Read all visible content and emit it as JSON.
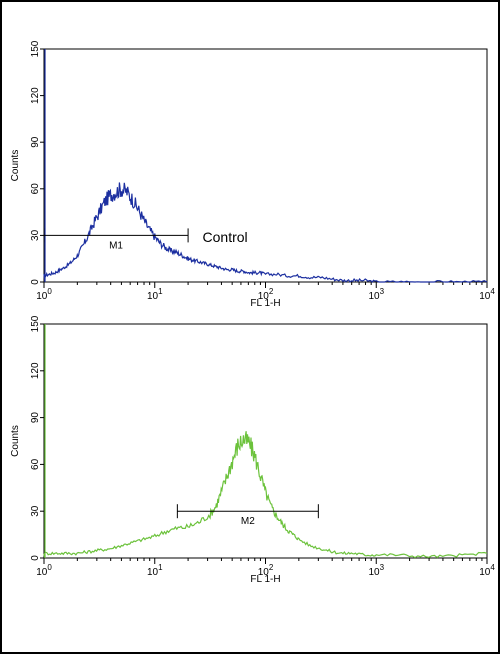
{
  "chart_data": [
    {
      "type": "line",
      "panel": "top",
      "title": "",
      "xlabel": "FL 1-H",
      "ylabel": "Counts",
      "x_scale": "log",
      "xlim": [
        1,
        10000
      ],
      "ylim": [
        0,
        150
      ],
      "x_ticks": [
        {
          "value": 1,
          "base": "10",
          "exp": "0"
        },
        {
          "value": 10,
          "base": "10",
          "exp": "1"
        },
        {
          "value": 100,
          "base": "10",
          "exp": "2"
        },
        {
          "value": 1000,
          "base": "10",
          "exp": "3"
        },
        {
          "value": 10000,
          "base": "10",
          "exp": "4"
        }
      ],
      "y_ticks": [
        "0",
        "30",
        "60",
        "90",
        "120",
        "150"
      ],
      "series": [
        {
          "color": "#1c2fa0",
          "x": [
            1.0,
            1.12,
            1.26,
            1.41,
            1.58,
            1.78,
            2.0,
            2.24,
            2.51,
            2.82,
            3.16,
            3.55,
            3.98,
            4.47,
            5.01,
            5.62,
            6.31,
            7.08,
            7.94,
            8.91,
            10.0,
            11.2,
            12.6,
            14.1,
            15.8,
            17.8,
            20.0,
            22.4,
            25.1,
            28.2,
            31.6,
            35.5,
            39.8,
            44.7,
            50.1,
            56.2,
            63.1,
            70.8,
            79.4,
            89.1,
            100,
            126,
            158,
            200,
            251,
            316,
            398,
            501,
            631,
            794,
            1000,
            1585,
            2512,
            3981,
            6310,
            10000
          ],
          "y": [
            4,
            5,
            6,
            8,
            10,
            13,
            17,
            23,
            30,
            38,
            45,
            52,
            56,
            58,
            60,
            58,
            53,
            47,
            40,
            34,
            29,
            25,
            22,
            20,
            19,
            17,
            15,
            14,
            13,
            12,
            11,
            10,
            9,
            8,
            8,
            7,
            7,
            6,
            6,
            6,
            5,
            5,
            4,
            4,
            3,
            3,
            2,
            1,
            1,
            1,
            0,
            0,
            0,
            0,
            0,
            0
          ]
        }
      ],
      "markers": [
        {
          "label": "M1",
          "x_start": 1,
          "x_end": 20,
          "y": 30
        }
      ],
      "annotations": [
        {
          "text": "Control",
          "x": 27,
          "y": 29
        }
      ],
      "grid": false
    },
    {
      "type": "line",
      "panel": "bottom",
      "title": "",
      "xlabel": "FL 1-H",
      "ylabel": "Counts",
      "x_scale": "log",
      "xlim": [
        1,
        10000
      ],
      "ylim": [
        0,
        150
      ],
      "x_ticks": [
        {
          "value": 1,
          "base": "10",
          "exp": "0"
        },
        {
          "value": 10,
          "base": "10",
          "exp": "1"
        },
        {
          "value": 100,
          "base": "10",
          "exp": "2"
        },
        {
          "value": 1000,
          "base": "10",
          "exp": "3"
        },
        {
          "value": 10000,
          "base": "10",
          "exp": "4"
        }
      ],
      "y_ticks": [
        "0",
        "30",
        "60",
        "90",
        "120",
        "150"
      ],
      "series": [
        {
          "color": "#6cc23c",
          "x": [
            1.0,
            1.26,
            1.58,
            2.0,
            2.51,
            3.16,
            3.98,
            5.01,
            6.31,
            7.94,
            10.0,
            12.6,
            15.8,
            20.0,
            25.1,
            31.6,
            35.5,
            39.8,
            44.7,
            50.1,
            56.2,
            63.1,
            70.8,
            79.4,
            89.1,
            100,
            112,
            126,
            141,
            158,
            178,
            200,
            251,
            316,
            398,
            501,
            631,
            794,
            1000,
            1585,
            2512,
            3981,
            6310,
            10000
          ],
          "y": [
            3,
            3,
            3,
            3,
            4,
            5,
            6,
            8,
            10,
            12,
            14,
            17,
            19,
            20,
            23,
            28,
            33,
            42,
            52,
            62,
            72,
            76,
            74,
            66,
            54,
            42,
            33,
            27,
            22,
            18,
            15,
            12,
            8,
            6,
            4,
            3,
            3,
            2,
            2,
            2,
            1,
            1,
            2,
            3
          ]
        }
      ],
      "markers": [
        {
          "label": "M2",
          "x_start": 16,
          "x_end": 300,
          "y": 30
        }
      ],
      "annotations": [],
      "grid": false
    }
  ]
}
